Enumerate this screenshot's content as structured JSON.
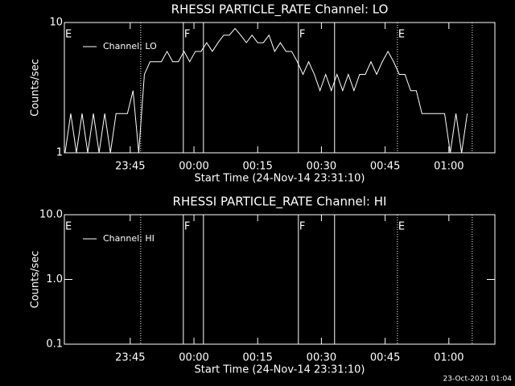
{
  "chart_data": [
    {
      "type": "line",
      "title": "RHESSI PARTICLE_RATE Channel: LO",
      "xlabel": "Start Time (24-Nov-14 23:31:10)",
      "ylabel": "Counts/sec",
      "log_y": true,
      "xlim": [
        -100,
        5980
      ],
      "ylim": [
        1,
        10
      ],
      "xticks": [
        {
          "value": 830,
          "label": "23:45"
        },
        {
          "value": 1730,
          "label": "00:00"
        },
        {
          "value": 2630,
          "label": "00:15"
        },
        {
          "value": 3530,
          "label": "00:30"
        },
        {
          "value": 4430,
          "label": "00:45"
        },
        {
          "value": 5330,
          "label": "01:00"
        }
      ],
      "yticks": [
        1,
        10
      ],
      "x": [
        -90,
        -10,
        70,
        150,
        230,
        310,
        390,
        470,
        550,
        630,
        710,
        790,
        870,
        950,
        1030,
        1110,
        1190,
        1270,
        1350,
        1430,
        1510,
        1590,
        1670,
        1750,
        1830,
        1910,
        1990,
        2070,
        2150,
        2230,
        2310,
        2390,
        2470,
        2550,
        2630,
        2710,
        2790,
        2870,
        2950,
        3030,
        3110,
        3190,
        3270,
        3350,
        3430,
        3510,
        3590,
        3670,
        3750,
        3830,
        3910,
        3990,
        4070,
        4150,
        4230,
        4310,
        4390,
        4470,
        4550,
        4630,
        4710,
        4790,
        4870,
        4950,
        5030,
        5110,
        5190,
        5270,
        5350,
        5430,
        5510,
        5590
      ],
      "series": [
        {
          "name": "Channel: LO",
          "color": "#ffffff",
          "values": [
            1,
            2,
            1,
            2,
            1,
            2,
            1,
            2,
            1,
            2,
            2,
            2,
            3,
            1,
            4,
            5,
            5,
            5,
            6,
            5,
            5,
            6,
            5,
            6,
            6,
            7,
            6,
            7,
            8,
            8,
            9,
            8,
            7,
            8,
            7,
            7,
            8,
            6,
            7,
            6,
            6,
            5,
            4,
            5,
            4,
            3,
            4,
            3,
            4,
            3,
            4,
            3,
            4,
            4,
            5,
            4,
            5,
            6,
            5,
            4,
            4,
            3,
            3,
            2,
            2,
            2,
            2,
            2,
            1,
            2,
            1,
            2
          ]
        }
      ],
      "annotations": [
        {
          "text": "E",
          "x": -100
        },
        {
          "text": "F",
          "x": 1580
        },
        {
          "text": "F",
          "x": 3205
        },
        {
          "text": "E",
          "x": 4603
        }
      ],
      "vlines": [
        {
          "x": 978,
          "style": "dotted"
        },
        {
          "x": 1580,
          "style": "solid"
        },
        {
          "x": 1864,
          "style": "solid"
        },
        {
          "x": 3205,
          "style": "solid"
        },
        {
          "x": 3716,
          "style": "solid"
        },
        {
          "x": 4603,
          "style": "dotted"
        },
        {
          "x": 5660,
          "style": "dotted"
        }
      ]
    },
    {
      "type": "line",
      "title": "RHESSI PARTICLE_RATE Channel: HI",
      "xlabel": "Start Time (24-Nov-14 23:31:10)",
      "ylabel": "Counts/sec",
      "log_y": true,
      "xlim": [
        -100,
        5980
      ],
      "ylim": [
        0.1,
        10
      ],
      "xticks": [
        {
          "value": 830,
          "label": "23:45"
        },
        {
          "value": 1730,
          "label": "00:00"
        },
        {
          "value": 2630,
          "label": "00:15"
        },
        {
          "value": 3530,
          "label": "00:30"
        },
        {
          "value": 4430,
          "label": "00:45"
        },
        {
          "value": 5330,
          "label": "01:00"
        }
      ],
      "yticks": [
        0.1,
        {
          "value": 1,
          "label": "1.0"
        },
        {
          "value": 10,
          "label": "10.0"
        }
      ],
      "series": [
        {
          "name": "Channel: HI",
          "color": "#ffffff"
        }
      ],
      "annotations": [
        {
          "text": "E",
          "x": -100
        },
        {
          "text": "F",
          "x": 1580
        },
        {
          "text": "F",
          "x": 3205
        },
        {
          "text": "E",
          "x": 4603
        }
      ],
      "vlines": [
        {
          "x": 978,
          "style": "dotted"
        },
        {
          "x": 1580,
          "style": "solid"
        },
        {
          "x": 1864,
          "style": "solid"
        },
        {
          "x": 3205,
          "style": "solid"
        },
        {
          "x": 3716,
          "style": "solid"
        },
        {
          "x": 4603,
          "style": "dotted"
        },
        {
          "x": 5660,
          "style": "dotted"
        }
      ]
    }
  ],
  "footer": "23-Oct-2021 01:04"
}
